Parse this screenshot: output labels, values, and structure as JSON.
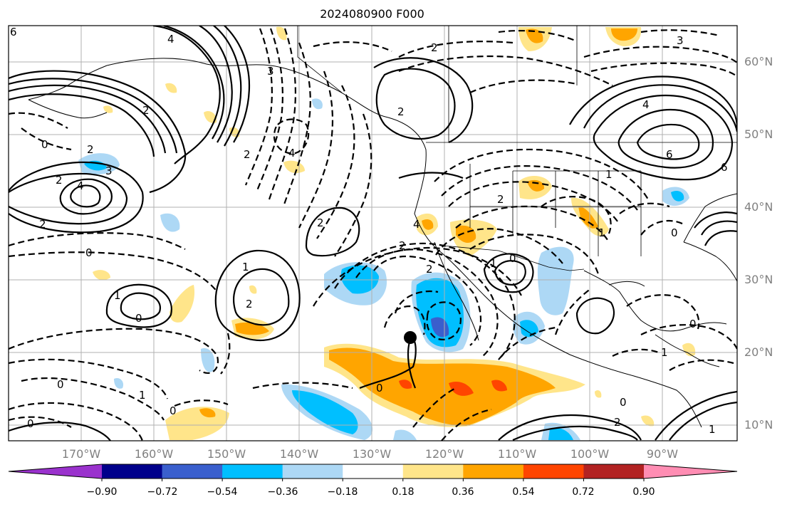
{
  "title": "2024080900 F000",
  "map": {
    "lat_labels": [
      "60°N",
      "50°N",
      "40°N",
      "30°N",
      "20°N",
      "10°N"
    ],
    "lon_labels": [
      "170°W",
      "160°W",
      "150°W",
      "140°W",
      "130°W",
      "120°W",
      "110°W",
      "100°W",
      "90°W"
    ],
    "contour_labels": [
      "6",
      "4",
      "2",
      "2",
      "0",
      "2",
      "4",
      "3",
      "2",
      "0",
      "3",
      "4",
      "2",
      "2",
      "4",
      "6",
      "3",
      "4",
      "2",
      "2",
      "1",
      "0",
      "0",
      "1",
      "1",
      "2",
      "2",
      "2",
      "0",
      "0",
      "1",
      "0",
      "1",
      "1",
      "0",
      "1",
      "0",
      "2",
      "1",
      "0",
      "0",
      "6",
      "2"
    ]
  },
  "colorbar": {
    "tick_labels": [
      "−0.90",
      "−0.72",
      "−0.54",
      "−0.36",
      "−0.18",
      "0.18",
      "0.36",
      "0.54",
      "0.72",
      "0.90"
    ],
    "colors": [
      "#9a32cd",
      "#00008b",
      "#3a5fcd",
      "#00bfff",
      "#add8f5",
      "#ffffff",
      "#ffe58a",
      "#ffa500",
      "#ff4500",
      "#b22222",
      "#ff8db3"
    ]
  },
  "colors": {
    "contour": "#000000",
    "grid": "#b0b0b0",
    "coast": "#000000",
    "axis_labels": "#808080"
  },
  "marker": "storm-center-dot"
}
